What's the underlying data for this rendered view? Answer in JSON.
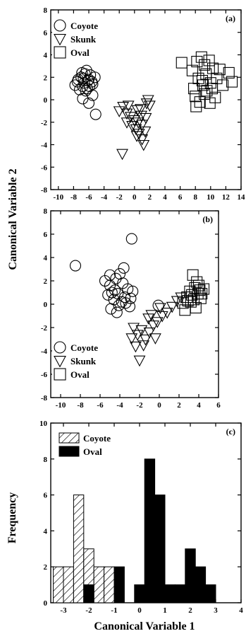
{
  "colors": {
    "ink": "#000000",
    "paper": "#ffffff"
  },
  "ylabel_shared": "Canonical Variable 2",
  "chart_data": [
    {
      "panel_label": "(a)",
      "type": "scatter",
      "xlim": [
        -11,
        14
      ],
      "ylim": [
        -8,
        8
      ],
      "xticks": [
        "-10",
        "-8",
        "-6",
        "-4",
        "-2",
        "0",
        "2",
        "4",
        "6",
        "8",
        "10",
        "12",
        "14"
      ],
      "yticks": [
        "-8",
        "-6",
        "-4",
        "-2",
        "0",
        "2",
        "4",
        "6",
        "8"
      ],
      "xtick_values": [
        -10,
        -8,
        -6,
        -4,
        -2,
        0,
        2,
        4,
        6,
        8,
        10,
        12,
        14
      ],
      "ytick_values": [
        -8,
        -6,
        -4,
        -2,
        0,
        2,
        4,
        6,
        8
      ],
      "legend": [
        {
          "label": "Coyote",
          "marker": "circle"
        },
        {
          "label": "Skunk",
          "marker": "triangle-down"
        },
        {
          "label": "Oval",
          "marker": "square"
        }
      ],
      "legend_position": "top-left",
      "series": [
        {
          "name": "Coyote",
          "marker": "circle",
          "points": [
            [
              -7.5,
              1.6
            ],
            [
              -7,
              2
            ],
            [
              -6.5,
              2.3
            ],
            [
              -6,
              1.8
            ],
            [
              -5.5,
              1.4
            ],
            [
              -6.8,
              1.2
            ],
            [
              -7.2,
              0.9
            ],
            [
              -6.2,
              1
            ],
            [
              -5.8,
              2.2
            ],
            [
              -6.6,
              1.5
            ],
            [
              -7.8,
              1.3
            ],
            [
              -6.4,
              0.8
            ],
            [
              -5.5,
              0.4
            ],
            [
              -6,
              -0.3
            ],
            [
              -6.8,
              0.1
            ],
            [
              -5.2,
              2
            ],
            [
              -6.9,
              2.4
            ],
            [
              -7.4,
              1.8
            ],
            [
              -5.9,
              1.2
            ],
            [
              -6.3,
              2.6
            ],
            [
              -5.1,
              -1.3
            ],
            [
              -6.1,
              1.7
            ],
            [
              -6.7,
              1.9
            ],
            [
              -5.6,
              1.6
            ]
          ]
        },
        {
          "name": "Skunk",
          "marker": "triangle-down",
          "points": [
            [
              -2,
              -1
            ],
            [
              -1.5,
              -0.6
            ],
            [
              -1,
              -1.2
            ],
            [
              -0.5,
              -1.5
            ],
            [
              0,
              -1.8
            ],
            [
              0.5,
              -2
            ],
            [
              1,
              -2.2
            ],
            [
              1.5,
              -1.6
            ],
            [
              0.8,
              -0.8
            ],
            [
              1.8,
              0
            ],
            [
              2,
              -0.5
            ],
            [
              0.2,
              -2.6
            ],
            [
              -0.3,
              -2.3
            ],
            [
              0.6,
              -3
            ],
            [
              1,
              -3.5
            ],
            [
              1.4,
              -2.8
            ],
            [
              -1,
              -2
            ],
            [
              -1.6,
              -4.8
            ],
            [
              0.9,
              -1.4
            ],
            [
              0.4,
              -0.9
            ],
            [
              -0.8,
              -0.5
            ],
            [
              1.6,
              -0.3
            ],
            [
              0.3,
              -3.2
            ],
            [
              1.2,
              -4
            ]
          ]
        },
        {
          "name": "Oval",
          "marker": "square",
          "points": [
            [
              6.2,
              3.3
            ],
            [
              7.6,
              2.6
            ],
            [
              8.2,
              3.4
            ],
            [
              8.8,
              3.8
            ],
            [
              9.2,
              3.1
            ],
            [
              9.8,
              3.5
            ],
            [
              10.3,
              2.8
            ],
            [
              8.4,
              1.9
            ],
            [
              9,
              1.3
            ],
            [
              9.5,
              0.8
            ],
            [
              10,
              1.5
            ],
            [
              10.8,
              1.9
            ],
            [
              11.6,
              1.3
            ],
            [
              12.4,
              2.4
            ],
            [
              12.8,
              1.6
            ],
            [
              8,
              0.3
            ],
            [
              8.6,
              -0.2
            ],
            [
              9.2,
              0.5
            ],
            [
              7.8,
              1
            ],
            [
              10.6,
              0.2
            ],
            [
              9.9,
              -0.3
            ],
            [
              8.1,
              -0.6
            ],
            [
              11.2,
              2.7
            ],
            [
              9.4,
              2.3
            ],
            [
              8.9,
              1.7
            ],
            [
              10.2,
              1
            ]
          ]
        }
      ]
    },
    {
      "panel_label": "(b)",
      "type": "scatter",
      "xlim": [
        -11,
        6
      ],
      "ylim": [
        -8,
        8
      ],
      "xticks": [
        "-10",
        "-8",
        "-6",
        "-4",
        "-2",
        "0",
        "2",
        "4",
        "6"
      ],
      "yticks": [
        "-8",
        "-6",
        "-4",
        "-2",
        "0",
        "2",
        "4",
        "6",
        "8"
      ],
      "xtick_values": [
        -10,
        -8,
        -6,
        -4,
        -2,
        0,
        2,
        4,
        6
      ],
      "ytick_values": [
        -8,
        -6,
        -4,
        -2,
        0,
        2,
        4,
        6,
        8
      ],
      "legend": [
        {
          "label": "Coyote",
          "marker": "circle"
        },
        {
          "label": "Skunk",
          "marker": "triangle-down"
        },
        {
          "label": "Oval",
          "marker": "square"
        }
      ],
      "legend_position": "bottom-left",
      "series": [
        {
          "name": "Coyote",
          "marker": "circle",
          "points": [
            [
              -8.5,
              3.3
            ],
            [
              -2.8,
              5.6
            ],
            [
              -5.5,
              2
            ],
            [
              -5,
              1.6
            ],
            [
              -4.5,
              1.2
            ],
            [
              -4,
              2.6
            ],
            [
              -3.6,
              3.1
            ],
            [
              -3.2,
              1.3
            ],
            [
              -2.7,
              1.1
            ],
            [
              -5.2,
              0.8
            ],
            [
              -4.6,
              0.4
            ],
            [
              -4.1,
              -0.1
            ],
            [
              -3.5,
              0.6
            ],
            [
              -3,
              -0.2
            ],
            [
              -4.9,
              -0.4
            ],
            [
              -4.3,
              -0.7
            ],
            [
              -3.8,
              0.2
            ],
            [
              -5,
              2.5
            ],
            [
              -4.4,
              2.2
            ],
            [
              -3.7,
              1.8
            ],
            [
              -2.9,
              0.5
            ],
            [
              -0.1,
              -0.1
            ],
            [
              -4.8,
              1
            ],
            [
              -4.2,
              0.9
            ],
            [
              -3.4,
              0.1
            ]
          ]
        },
        {
          "name": "Skunk",
          "marker": "triangle-down",
          "points": [
            [
              -2,
              -4.8
            ],
            [
              -2.4,
              -3.6
            ],
            [
              -2.8,
              -2.9
            ],
            [
              -2.2,
              -2.6
            ],
            [
              -1.8,
              -2.2
            ],
            [
              -1.4,
              -3
            ],
            [
              -1,
              -2.4
            ],
            [
              -0.6,
              -1.8
            ],
            [
              -0.2,
              -1.5
            ],
            [
              0.3,
              -1
            ],
            [
              0.8,
              -0.7
            ],
            [
              1.3,
              -0.2
            ],
            [
              -1.6,
              -3.5
            ],
            [
              -1.1,
              -1.2
            ],
            [
              -0.4,
              -2.9
            ],
            [
              -2.6,
              -2
            ],
            [
              0.1,
              -0.3
            ],
            [
              -0.8,
              -0.9
            ],
            [
              1.8,
              0.3
            ],
            [
              2.2,
              0.6
            ]
          ]
        },
        {
          "name": "Oval",
          "marker": "square",
          "points": [
            [
              2.4,
              0.1
            ],
            [
              2.8,
              0.6
            ],
            [
              3.1,
              1.1
            ],
            [
              3.4,
              2.5
            ],
            [
              3.6,
              1.4
            ],
            [
              3.9,
              0.9
            ],
            [
              4.2,
              0.5
            ],
            [
              4.5,
              1.3
            ],
            [
              3.2,
              0.2
            ],
            [
              3.7,
              -0.3
            ],
            [
              2.6,
              -0.5
            ],
            [
              4,
              1.6
            ],
            [
              3.3,
              0.8
            ],
            [
              3.8,
              1.9
            ],
            [
              4.3,
              0.9
            ],
            [
              2.9,
              0.3
            ],
            [
              3.5,
              0.4
            ],
            [
              4.1,
              1.2
            ]
          ]
        }
      ]
    },
    {
      "panel_label": "(c)",
      "type": "bar",
      "subtype": "histogram",
      "xlabel": "Canonical Variable 1",
      "ylabel": "Frequency",
      "xlim": [
        -3.5,
        4
      ],
      "ylim": [
        0,
        10
      ],
      "xticks": [
        "-3",
        "-2",
        "-1",
        "0",
        "1",
        "2",
        "3",
        "4"
      ],
      "yticks": [
        "0",
        "2",
        "4",
        "6",
        "8",
        "10"
      ],
      "xtick_values": [
        -3,
        -2,
        -1,
        0,
        1,
        2,
        3,
        4
      ],
      "ytick_values": [
        0,
        2,
        4,
        6,
        8,
        10
      ],
      "bin_width": 0.4,
      "legend": [
        {
          "label": "Coyote",
          "pattern": "hatched"
        },
        {
          "label": "Oval",
          "pattern": "solid"
        }
      ],
      "legend_position": "top-left",
      "series": [
        {
          "name": "Coyote",
          "pattern": "hatched",
          "bins": [
            [
              -3.2,
              2
            ],
            [
              -2.8,
              2
            ],
            [
              -2.4,
              6
            ],
            [
              -2,
              3
            ],
            [
              -1.6,
              2
            ],
            [
              -1.2,
              2
            ]
          ]
        },
        {
          "name": "Oval",
          "pattern": "solid",
          "bins": [
            [
              -2,
              1
            ],
            [
              -0.8,
              2
            ],
            [
              0,
              1
            ],
            [
              0.4,
              8
            ],
            [
              0.8,
              6
            ],
            [
              1.2,
              1
            ],
            [
              1.6,
              1
            ],
            [
              2,
              3
            ],
            [
              2.4,
              2
            ],
            [
              2.8,
              1
            ]
          ]
        }
      ]
    }
  ]
}
